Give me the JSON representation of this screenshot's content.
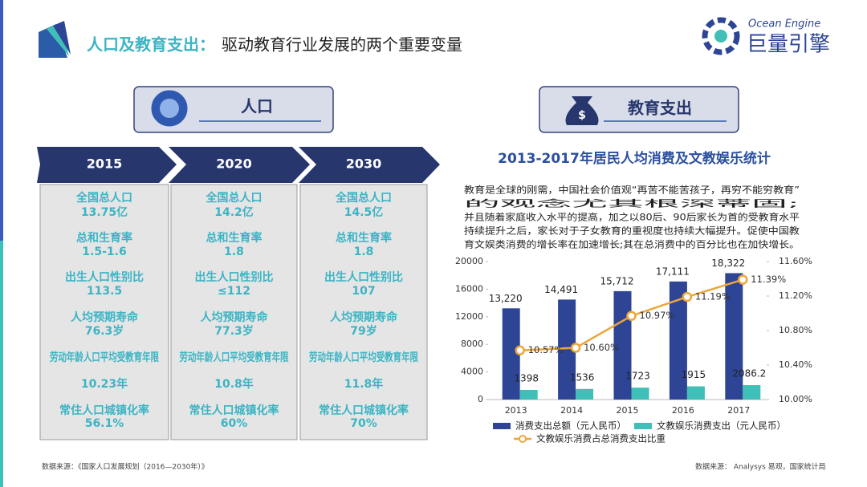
{
  "header": {
    "title_lead": "人口及教育支出：",
    "title_rest": "驱动教育行业发展的两个重要变量",
    "logo_en": "Ocean Engine",
    "logo_cn": "巨量引擎"
  },
  "population": {
    "heading": "人口",
    "indicators": [
      "全国总人口",
      "总和生育率",
      "出生人口性别比",
      "人均预期寿命",
      "劳动年龄人口平均受教育年限",
      "常住人口城镇化率"
    ],
    "columns": [
      {
        "year": "2015",
        "values": [
          "13.75亿",
          "1.5-1.6",
          "113.5",
          "76.3岁",
          "10.23年",
          "56.1%"
        ]
      },
      {
        "year": "2020",
        "values": [
          "14.2亿",
          "1.8",
          "≤112",
          "77.3岁",
          "10.8年",
          "60%"
        ]
      },
      {
        "year": "2030",
        "values": [
          "14.5亿",
          "1.8",
          "107",
          "79岁",
          "11.8年",
          "70%"
        ]
      }
    ],
    "source": "数据来源：《国家人口发展规划（2016—2030年）》"
  },
  "education": {
    "heading": "教育支出",
    "description": [
      "教育是全球的刚需，中国社会价值观“再苦不能苦孩子，再穷不能穷教育”",
      "的观念尤其根深蒂固;",
      "并且随着家庭收入水平的提高，加之以80后、90后家长为首的受教育水平",
      "持续提升之后，家长对于子女教育的重视度也持续大幅提升。促使中国教",
      "育文娱类消费的增长率在加速增长;其在总消费中的百分比也在加快增长。"
    ],
    "source": "数据来源： Analysys 易观，国家统计局"
  },
  "chart_data": {
    "type": "bar",
    "title": "2013-2017年居民人均消费及文教娱乐统计",
    "categories": [
      "2013",
      "2014",
      "2015",
      "2016",
      "2017"
    ],
    "series": [
      {
        "name": "消费支出总额（元人民币）",
        "color": "#2e4595",
        "values": [
          13220,
          14491,
          15712,
          17111,
          18322
        ],
        "value_labels": [
          "13,220",
          "14,491",
          "15,712",
          "17,111",
          "18,322"
        ]
      },
      {
        "name": "文教娱乐消费支出（元人民币）",
        "color": "#3fbfb7",
        "values": [
          1398,
          1536,
          1723,
          1915,
          2086.2
        ]
      },
      {
        "name": "文教娱乐消费占总消费支出比重",
        "color": "#eda63a",
        "type": "line",
        "axis": "y2",
        "values": [
          10.57,
          10.6,
          10.97,
          11.19,
          11.39
        ],
        "value_labels": [
          "10.57%",
          "10.60%",
          "10.97%",
          "11.19%",
          "11.39%"
        ]
      }
    ],
    "ylim": [
      0,
      20000
    ],
    "yticks": [
      0,
      4000,
      8000,
      12000,
      16000,
      20000
    ],
    "y2lim": [
      10,
      11.6
    ],
    "y2ticks": [
      {
        "value": 10,
        "label": "10.00%"
      },
      {
        "value": 10.4,
        "label": "10.40%"
      },
      {
        "value": 10.8,
        "label": "10.80%"
      },
      {
        "value": 11.2,
        "label": "11.20%"
      },
      {
        "value": 11.6,
        "label": "11.60%"
      }
    ]
  }
}
